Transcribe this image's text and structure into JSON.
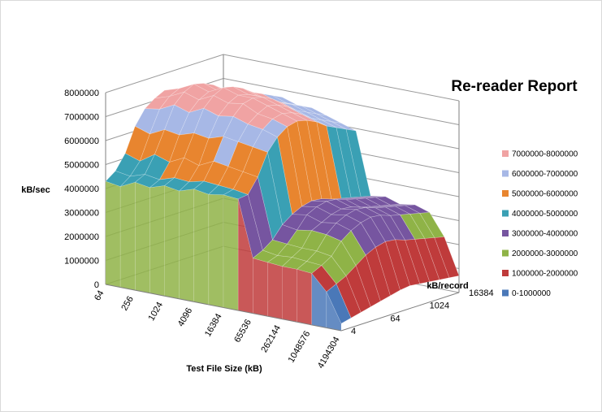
{
  "chart_data": {
    "type": "surface",
    "title": "Re-reader Report",
    "xlabel": "Test File Size (kB)",
    "ylabel": "kB/sec",
    "zlabel": "kB/record",
    "x_ticks": [
      "64",
      "256",
      "1024",
      "4096",
      "16384",
      "65536",
      "262144",
      "1048576",
      "4194304"
    ],
    "z_ticks": [
      "4",
      "64",
      "1024",
      "16384"
    ],
    "y_ticks": [
      "0",
      "1000000",
      "2000000",
      "3000000",
      "4000000",
      "5000000",
      "6000000",
      "7000000",
      "8000000"
    ],
    "ylim": [
      0,
      8000000
    ],
    "grid": true,
    "legend_position": "right",
    "bands": [
      {
        "label": "7000000-8000000",
        "color": "#f0a3a3"
      },
      {
        "label": "6000000-7000000",
        "color": "#a7b8e6"
      },
      {
        "label": "5000000-6000000",
        "color": "#e8852f"
      },
      {
        "label": "4000000-5000000",
        "color": "#3aa0b4"
      },
      {
        "label": "3000000-4000000",
        "color": "#7655a0"
      },
      {
        "label": "2000000-3000000",
        "color": "#8fb347"
      },
      {
        "label": "1000000-2000000",
        "color": "#bf3b3b"
      },
      {
        "label": "0-1000000",
        "color": "#4a78b8"
      }
    ],
    "x_values_kb": [
      64,
      128,
      256,
      512,
      1024,
      2048,
      4096,
      8192,
      16384,
      32768,
      65536,
      131072,
      262144,
      524288,
      1048576,
      2097152,
      4194304
    ],
    "z_values_kb": [
      4,
      8,
      16,
      32,
      64,
      128,
      256,
      512,
      1024,
      2048,
      4096,
      8192,
      16384
    ],
    "surface_values": [
      [
        4300000,
        4200000,
        4500000,
        4400000,
        4600000,
        4500000,
        4700000,
        4600000,
        4700000,
        4650000,
        2300000,
        2250000,
        2200000,
        2200000,
        2150000,
        1500000,
        300000
      ],
      [
        4600000,
        4500000,
        4700000,
        4600000,
        4800000,
        4750000,
        4900000,
        4850000,
        4800000,
        4700000,
        2500000,
        2400000,
        2450000,
        2400000,
        2350000,
        1700000,
        400000
      ],
      [
        5200000,
        5000000,
        5400000,
        5200000,
        5500000,
        5300000,
        5600000,
        5500000,
        5400000,
        5300000,
        2800000,
        2750000,
        2700000,
        2700000,
        2600000,
        1900000,
        500000
      ],
      [
        6200000,
        6000000,
        6300000,
        6200000,
        6400000,
        6300000,
        6500000,
        6400000,
        6300000,
        6200000,
        3300000,
        3200000,
        3300000,
        3250000,
        3100000,
        2200000,
        600000
      ],
      [
        6800000,
        6900000,
        7200000,
        7000000,
        7300000,
        7100000,
        7200000,
        7000000,
        6900000,
        6700000,
        3600000,
        3700000,
        3500000,
        3600000,
        3400000,
        2500000,
        700000
      ],
      [
        7100000,
        7300000,
        7600000,
        7400000,
        7700000,
        7500000,
        7600000,
        7300000,
        7200000,
        7000000,
        3800000,
        3900000,
        3700000,
        3800000,
        3600000,
        2700000,
        800000
      ],
      [
        7300000,
        7500000,
        7800000,
        7600000,
        7900000,
        7700000,
        7700000,
        7500000,
        7300000,
        7100000,
        3900000,
        4000000,
        3800000,
        3900000,
        3700000,
        2800000,
        900000
      ],
      [
        7200000,
        7400000,
        7700000,
        7500000,
        7800000,
        7600000,
        7600000,
        7400000,
        7200000,
        7000000,
        3850000,
        3950000,
        3750000,
        3850000,
        3650000,
        2750000,
        950000
      ],
      [
        7000000,
        7200000,
        7500000,
        7300000,
        7600000,
        7400000,
        7400000,
        7200000,
        7000000,
        6800000,
        3700000,
        3800000,
        3600000,
        3700000,
        3500000,
        2600000,
        900000
      ],
      [
        6800000,
        7000000,
        7200000,
        7000000,
        7300000,
        7100000,
        7100000,
        6900000,
        6700000,
        6500000,
        3600000,
        3700000,
        3500000,
        3600000,
        3400000,
        2500000,
        850000
      ],
      [
        6600000,
        6800000,
        7000000,
        6800000,
        7100000,
        6900000,
        6900000,
        6700000,
        6500000,
        6300000,
        3500000,
        3600000,
        3400000,
        3500000,
        3300000,
        2400000,
        800000
      ],
      [
        6400000,
        6600000,
        6800000,
        6600000,
        6900000,
        6700000,
        6700000,
        6500000,
        6300000,
        6100000,
        3400000,
        3500000,
        3300000,
        3400000,
        3200000,
        2300000,
        750000
      ],
      [
        6200000,
        6400000,
        6600000,
        6400000,
        6700000,
        6500000,
        6500000,
        6300000,
        6100000,
        5900000,
        3300000,
        3400000,
        3200000,
        3300000,
        3100000,
        2200000,
        700000
      ]
    ]
  }
}
